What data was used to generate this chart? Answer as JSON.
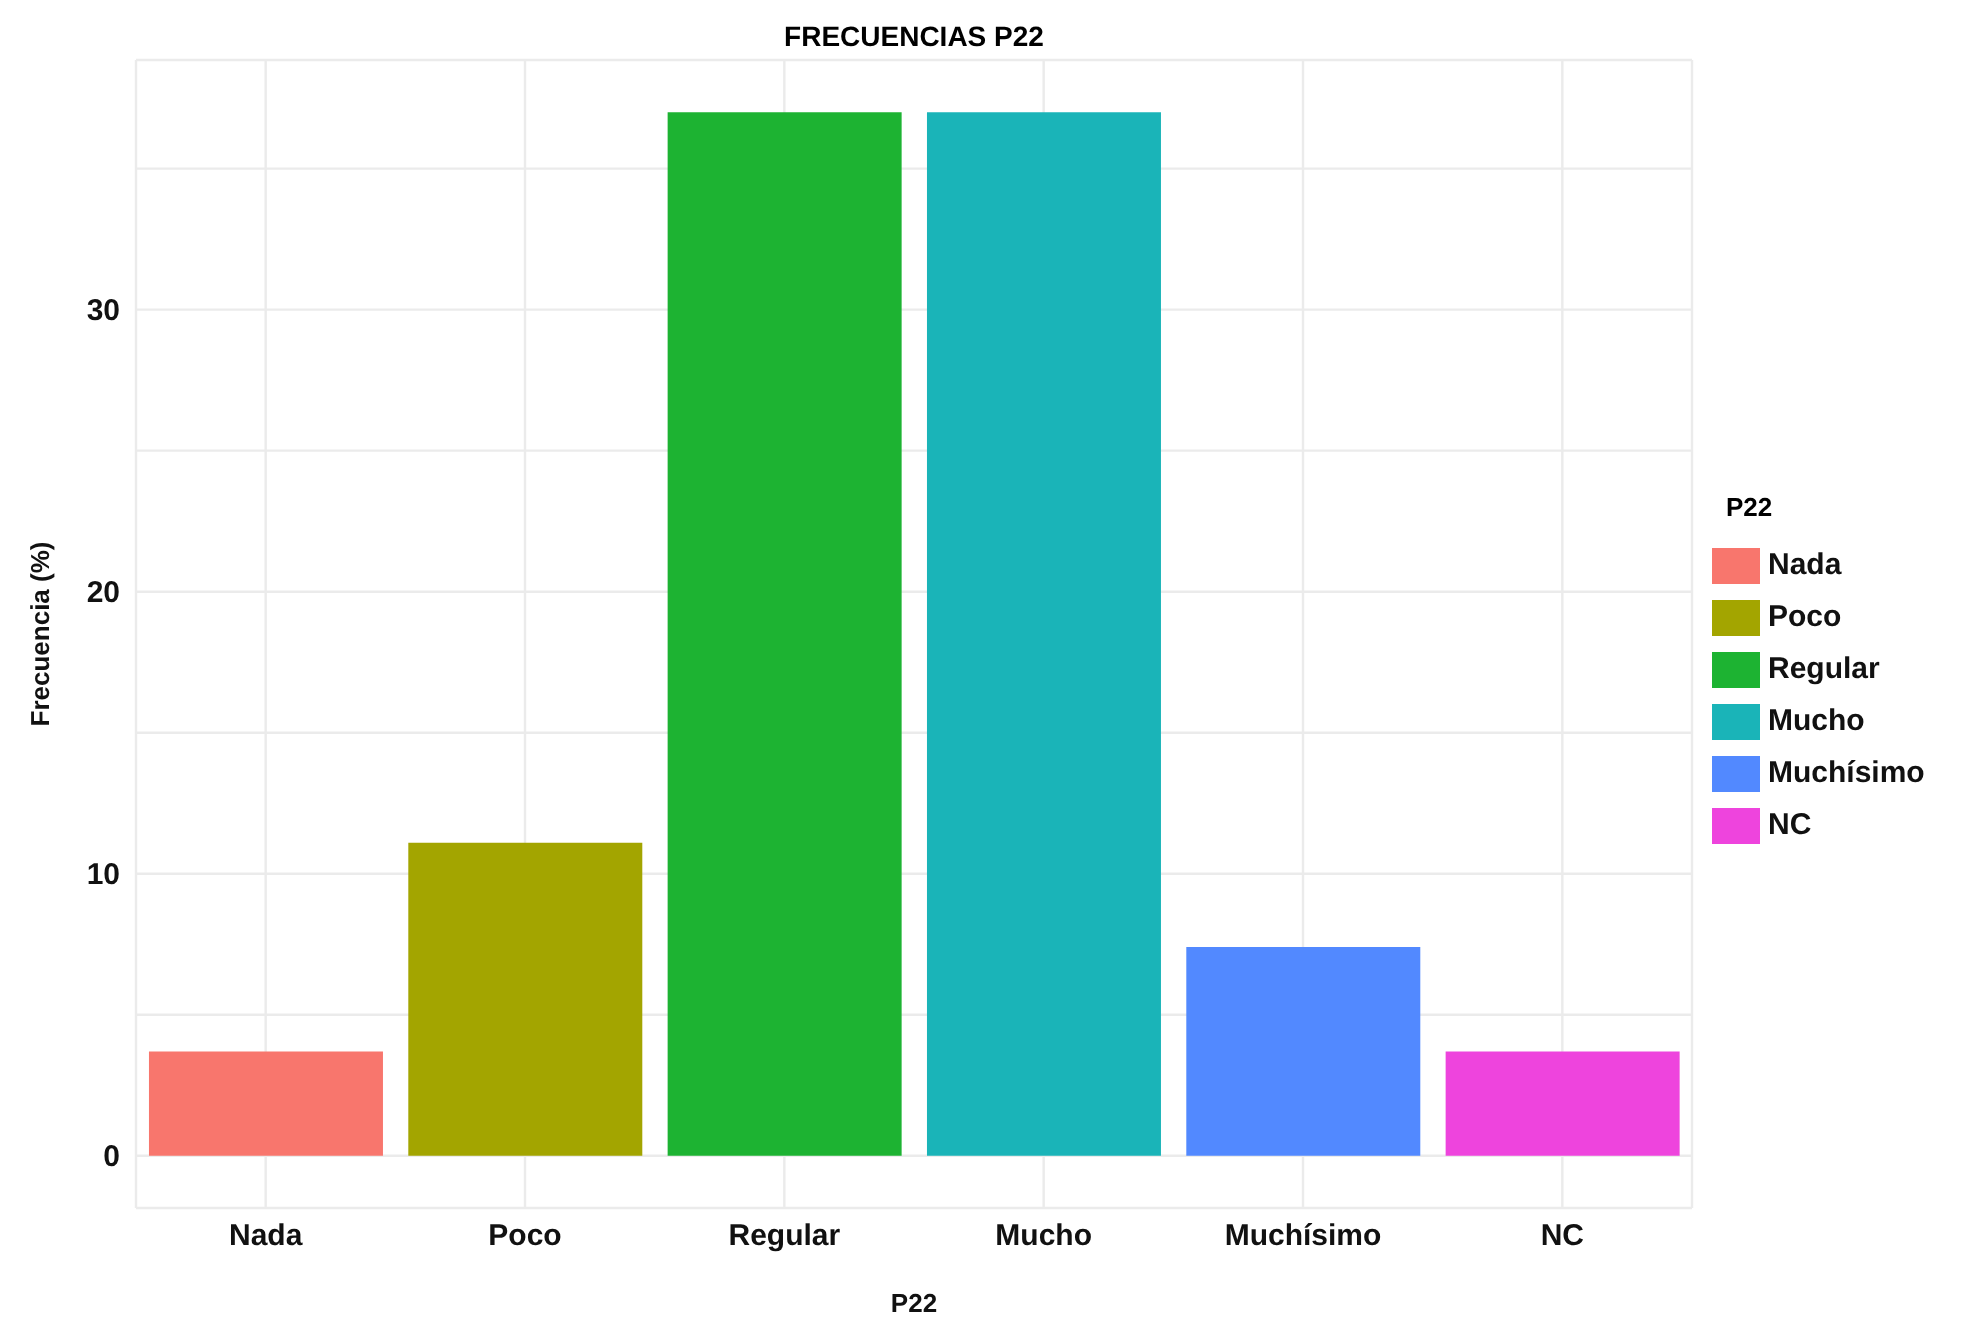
{
  "chart_data": {
    "type": "bar",
    "title": "FRECUENCIAS P22",
    "xlabel": "P22",
    "ylabel": "Frecuencia (%)",
    "legend_title": "P22",
    "categories": [
      "Nada",
      "Poco",
      "Regular",
      "Mucho",
      "Muchísimo",
      "NC"
    ],
    "stacked": true,
    "series": [
      {
        "name": "Nada",
        "color": "#f8766d",
        "values": [
          3.7,
          null,
          null,
          null,
          null,
          null
        ]
      },
      {
        "name": "Poco",
        "color": "#a3a500",
        "values": [
          null,
          11.1,
          null,
          null,
          null,
          null
        ]
      },
      {
        "name": "Regular",
        "color": "#1db332",
        "values": [
          null,
          null,
          37.0,
          null,
          null,
          null
        ]
      },
      {
        "name": "Mucho",
        "color": "#1ab4b8",
        "values": [
          null,
          null,
          null,
          37.0,
          null,
          null
        ]
      },
      {
        "name": "Muchísimo",
        "color": "#5289ff",
        "values": [
          null,
          null,
          null,
          null,
          7.4,
          null
        ]
      },
      {
        "name": "NC",
        "color": "#ee44dd",
        "values": [
          null,
          null,
          null,
          null,
          null,
          3.7
        ]
      }
    ],
    "ylim": [
      -1.85,
      38.85
    ],
    "yticks": [
      0,
      {
        "value": 5,
        "label": null
      },
      10,
      {
        "value": 15,
        "label": null
      },
      20,
      {
        "value": 25,
        "label": null
      },
      30,
      {
        "value": 35,
        "label": null
      }
    ],
    "grid": true,
    "legend": "right"
  }
}
